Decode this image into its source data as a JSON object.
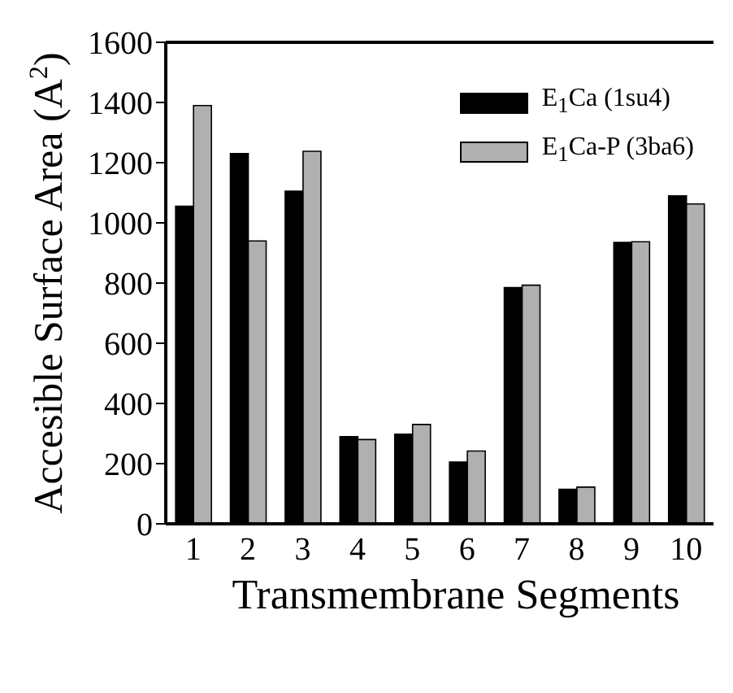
{
  "chart_data": {
    "type": "bar",
    "xlabel": "Transmembrane Segments",
    "ylabel": "Accesible Surface Area (A$^{2}$)",
    "categories": [
      "1",
      "2",
      "3",
      "4",
      "5",
      "6",
      "7",
      "8",
      "9",
      "10"
    ],
    "series": [
      {
        "name": "E$_{1}$Ca (1su4)",
        "color": "#000000",
        "values": [
          1055,
          1230,
          1105,
          290,
          298,
          205,
          785,
          115,
          935,
          1090
        ]
      },
      {
        "name": "E$_{1}$Ca-P (3ba6)",
        "color": "#b0b0b0",
        "values": [
          1390,
          940,
          1238,
          280,
          330,
          242,
          793,
          122,
          937,
          1063
        ]
      }
    ],
    "ylim": [
      0,
      1600
    ],
    "yticks": [
      0,
      200,
      400,
      600,
      800,
      1000,
      1200,
      1400,
      1600
    ],
    "grid": false,
    "legend": "top right"
  }
}
